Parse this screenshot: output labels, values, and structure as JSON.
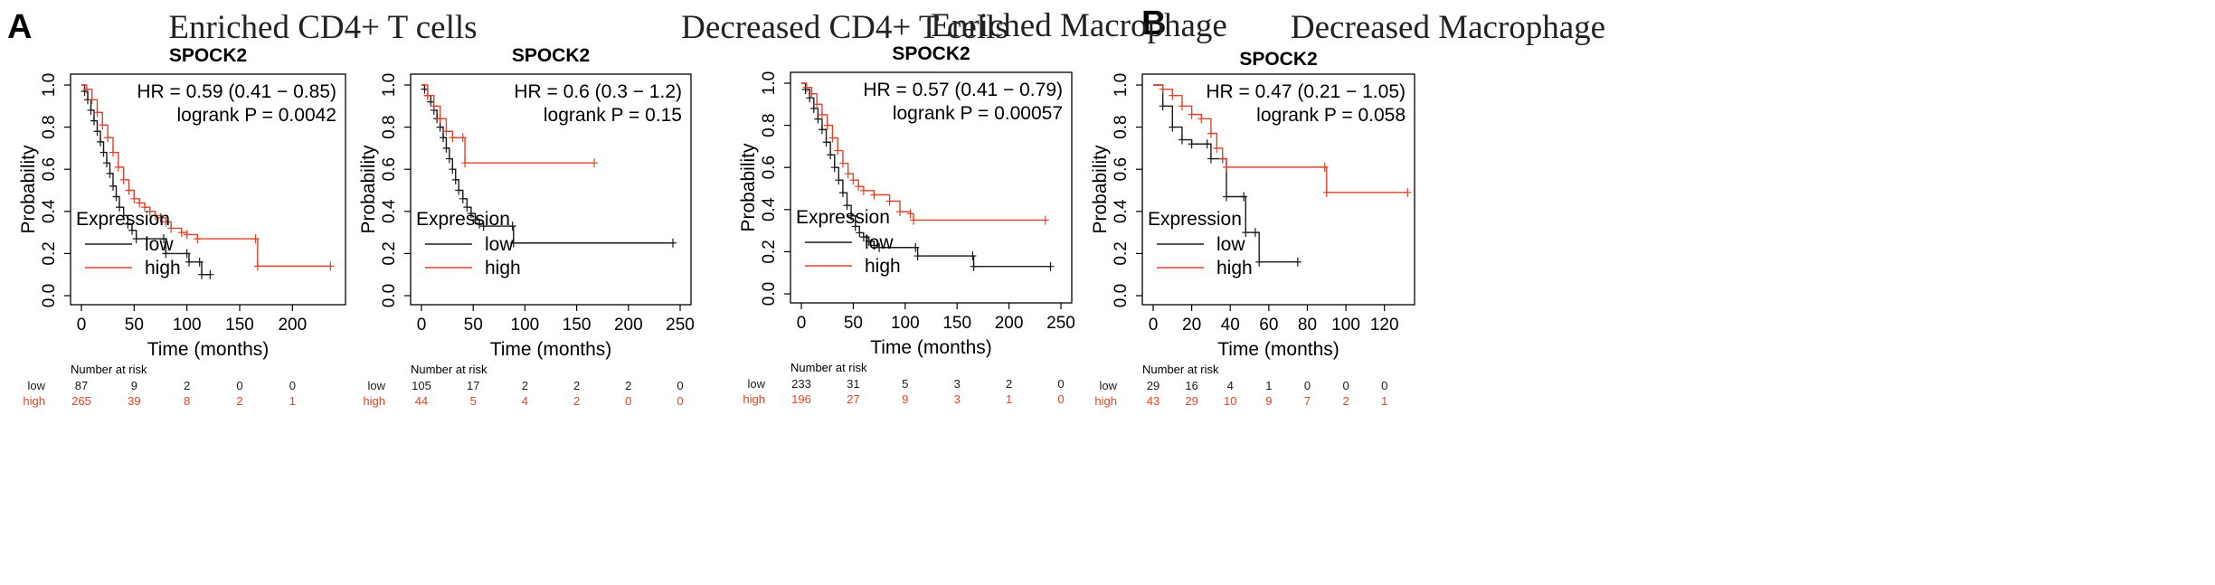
{
  "colors": {
    "low": "#1a1a1a",
    "high": "#e0432b",
    "axis": "#000000"
  },
  "panel_letters": [
    "A",
    "B"
  ],
  "chart_data": [
    {
      "type": "line",
      "title": "Enriched CD4+ T cells",
      "gene": "SPOCK2",
      "hr_text": "HR = 0.59 (0.41 − 0.85)",
      "logrank_text": "logrank P = 0.0042",
      "xlabel": "Time (months)",
      "ylabel": "Probability",
      "xlim": [
        0,
        240
      ],
      "ylim": [
        0,
        1
      ],
      "x_ticks": [
        0,
        50,
        100,
        150,
        200
      ],
      "y_ticks": [
        "0.0",
        "0.2",
        "0.4",
        "0.6",
        "0.8",
        "1.0"
      ],
      "legend_title": "Expression",
      "series": [
        {
          "name": "low",
          "points": [
            [
              0,
              1
            ],
            [
              3,
              0.97
            ],
            [
              6,
              0.93
            ],
            [
              9,
              0.88
            ],
            [
              12,
              0.83
            ],
            [
              15,
              0.78
            ],
            [
              18,
              0.73
            ],
            [
              21,
              0.68
            ],
            [
              24,
              0.63
            ],
            [
              27,
              0.58
            ],
            [
              30,
              0.52
            ],
            [
              33,
              0.47
            ],
            [
              36,
              0.42
            ],
            [
              40,
              0.38
            ],
            [
              44,
              0.34
            ],
            [
              48,
              0.31
            ],
            [
              52,
              0.27
            ],
            [
              78,
              0.27
            ],
            [
              80,
              0.2
            ],
            [
              100,
              0.2
            ],
            [
              102,
              0.16
            ],
            [
              112,
              0.16
            ],
            [
              114,
              0.1
            ],
            [
              122,
              0.1
            ]
          ]
        },
        {
          "name": "high",
          "points": [
            [
              0,
              1
            ],
            [
              5,
              0.98
            ],
            [
              10,
              0.93
            ],
            [
              15,
              0.87
            ],
            [
              20,
              0.81
            ],
            [
              25,
              0.75
            ],
            [
              30,
              0.68
            ],
            [
              35,
              0.61
            ],
            [
              40,
              0.55
            ],
            [
              45,
              0.5
            ],
            [
              50,
              0.46
            ],
            [
              55,
              0.44
            ],
            [
              60,
              0.42
            ],
            [
              65,
              0.4
            ],
            [
              70,
              0.38
            ],
            [
              75,
              0.37
            ],
            [
              80,
              0.35
            ],
            [
              85,
              0.32
            ],
            [
              95,
              0.3
            ],
            [
              100,
              0.29
            ],
            [
              110,
              0.27
            ],
            [
              165,
              0.27
            ],
            [
              167,
              0.14
            ],
            [
              236,
              0.14
            ]
          ]
        }
      ],
      "risk_table": {
        "title": "Number at risk",
        "rows": [
          {
            "label": "low",
            "values": [
              "87",
              "9",
              "2",
              "0",
              "0"
            ]
          },
          {
            "label": "high",
            "values": [
              "265",
              "39",
              "8",
              "2",
              "1"
            ]
          }
        ]
      }
    },
    {
      "type": "line",
      "title": "Decreased CD4+ T cells",
      "gene": "SPOCK2",
      "hr_text": "HR = 0.6 (0.3 − 1.2)",
      "logrank_text": "logrank P = 0.15",
      "xlabel": "Time (months)",
      "ylabel": "Probability",
      "xlim": [
        0,
        250
      ],
      "ylim": [
        0,
        1
      ],
      "x_ticks": [
        0,
        50,
        100,
        150,
        200,
        250
      ],
      "y_ticks": [
        "0.0",
        "0.2",
        "0.4",
        "0.6",
        "0.8",
        "1.0"
      ],
      "legend_title": "Expression",
      "series": [
        {
          "name": "low",
          "points": [
            [
              0,
              1
            ],
            [
              3,
              0.98
            ],
            [
              6,
              0.95
            ],
            [
              9,
              0.92
            ],
            [
              12,
              0.88
            ],
            [
              15,
              0.84
            ],
            [
              18,
              0.8
            ],
            [
              21,
              0.75
            ],
            [
              24,
              0.7
            ],
            [
              27,
              0.65
            ],
            [
              30,
              0.6
            ],
            [
              33,
              0.55
            ],
            [
              36,
              0.5
            ],
            [
              40,
              0.46
            ],
            [
              44,
              0.42
            ],
            [
              48,
              0.39
            ],
            [
              52,
              0.36
            ],
            [
              56,
              0.34
            ],
            [
              60,
              0.33
            ],
            [
              88,
              0.33
            ],
            [
              89,
              0.25
            ],
            [
              243,
              0.25
            ]
          ]
        },
        {
          "name": "high",
          "points": [
            [
              0,
              1
            ],
            [
              6,
              0.95
            ],
            [
              12,
              0.9
            ],
            [
              18,
              0.84
            ],
            [
              24,
              0.78
            ],
            [
              30,
              0.75
            ],
            [
              40,
              0.75
            ],
            [
              42,
              0.63
            ],
            [
              167,
              0.63
            ]
          ]
        }
      ],
      "risk_table": {
        "title": "Number at risk",
        "rows": [
          {
            "label": "low",
            "values": [
              "105",
              "17",
              "2",
              "2",
              "2",
              "0"
            ]
          },
          {
            "label": "high",
            "values": [
              "44",
              "5",
              "4",
              "2",
              "0",
              "0"
            ]
          }
        ]
      }
    },
    {
      "type": "line",
      "title": "Enriched Macrophage",
      "gene": "SPOCK2",
      "hr_text": "HR = 0.57 (0.41 − 0.79)",
      "logrank_text": "logrank P = 0.00057",
      "xlabel": "Time (months)",
      "ylabel": "Probability",
      "xlim": [
        0,
        250
      ],
      "ylim": [
        0,
        1
      ],
      "x_ticks": [
        0,
        50,
        100,
        150,
        200,
        250
      ],
      "y_ticks": [
        "0.0",
        "0.2",
        "0.4",
        "0.6",
        "0.8",
        "1.0"
      ],
      "legend_title": "Expression",
      "series": [
        {
          "name": "low",
          "points": [
            [
              0,
              1
            ],
            [
              4,
              0.97
            ],
            [
              8,
              0.93
            ],
            [
              12,
              0.88
            ],
            [
              16,
              0.83
            ],
            [
              20,
              0.78
            ],
            [
              24,
              0.72
            ],
            [
              28,
              0.66
            ],
            [
              32,
              0.6
            ],
            [
              36,
              0.54
            ],
            [
              40,
              0.48
            ],
            [
              44,
              0.42
            ],
            [
              48,
              0.37
            ],
            [
              52,
              0.32
            ],
            [
              56,
              0.29
            ],
            [
              60,
              0.27
            ],
            [
              65,
              0.25
            ],
            [
              70,
              0.23
            ],
            [
              75,
              0.22
            ],
            [
              110,
              0.22
            ],
            [
              112,
              0.18
            ],
            [
              165,
              0.18
            ],
            [
              166,
              0.13
            ],
            [
              240,
              0.13
            ]
          ]
        },
        {
          "name": "high",
          "points": [
            [
              0,
              1
            ],
            [
              5,
              0.98
            ],
            [
              10,
              0.95
            ],
            [
              15,
              0.9
            ],
            [
              20,
              0.85
            ],
            [
              25,
              0.8
            ],
            [
              30,
              0.74
            ],
            [
              35,
              0.68
            ],
            [
              40,
              0.62
            ],
            [
              45,
              0.57
            ],
            [
              50,
              0.54
            ],
            [
              55,
              0.51
            ],
            [
              60,
              0.49
            ],
            [
              70,
              0.47
            ],
            [
              85,
              0.44
            ],
            [
              95,
              0.39
            ],
            [
              105,
              0.38
            ],
            [
              108,
              0.35
            ],
            [
              235,
              0.35
            ]
          ]
        }
      ],
      "risk_table": {
        "title": "Number at risk",
        "rows": [
          {
            "label": "low",
            "values": [
              "233",
              "31",
              "5",
              "3",
              "2",
              "0"
            ]
          },
          {
            "label": "high",
            "values": [
              "196",
              "27",
              "9",
              "3",
              "1",
              "0"
            ]
          }
        ]
      }
    },
    {
      "type": "line",
      "title": "Decreased Macrophage",
      "gene": "SPOCK2",
      "hr_text": "HR = 0.47 (0.21 − 1.05)",
      "logrank_text": "logrank P = 0.058",
      "xlabel": "Time (months)",
      "ylabel": "Probability",
      "xlim": [
        0,
        130
      ],
      "ylim": [
        0,
        1
      ],
      "x_ticks": [
        0,
        20,
        40,
        60,
        80,
        100,
        120
      ],
      "y_ticks": [
        "0.0",
        "0.2",
        "0.4",
        "0.6",
        "0.8",
        "1.0"
      ],
      "legend_title": "Expression",
      "series": [
        {
          "name": "low",
          "points": [
            [
              0,
              1
            ],
            [
              5,
              0.9
            ],
            [
              10,
              0.8
            ],
            [
              15,
              0.74
            ],
            [
              20,
              0.72
            ],
            [
              28,
              0.72
            ],
            [
              30,
              0.65
            ],
            [
              36,
              0.65
            ],
            [
              38,
              0.47
            ],
            [
              47,
              0.47
            ],
            [
              48,
              0.3
            ],
            [
              53,
              0.3
            ],
            [
              55,
              0.16
            ],
            [
              75,
              0.16
            ]
          ]
        },
        {
          "name": "high",
          "points": [
            [
              0,
              1
            ],
            [
              5,
              0.98
            ],
            [
              10,
              0.95
            ],
            [
              15,
              0.9
            ],
            [
              20,
              0.86
            ],
            [
              25,
              0.84
            ],
            [
              30,
              0.77
            ],
            [
              33,
              0.7
            ],
            [
              36,
              0.65
            ],
            [
              38,
              0.61
            ],
            [
              89,
              0.61
            ],
            [
              90,
              0.49
            ],
            [
              132,
              0.49
            ]
          ]
        }
      ],
      "risk_table": {
        "title": "Number at risk",
        "rows": [
          {
            "label": "low",
            "values": [
              "29",
              "16",
              "4",
              "1",
              "0",
              "0",
              "0"
            ]
          },
          {
            "label": "high",
            "values": [
              "43",
              "29",
              "10",
              "9",
              "7",
              "2",
              "1"
            ]
          }
        ]
      }
    }
  ]
}
